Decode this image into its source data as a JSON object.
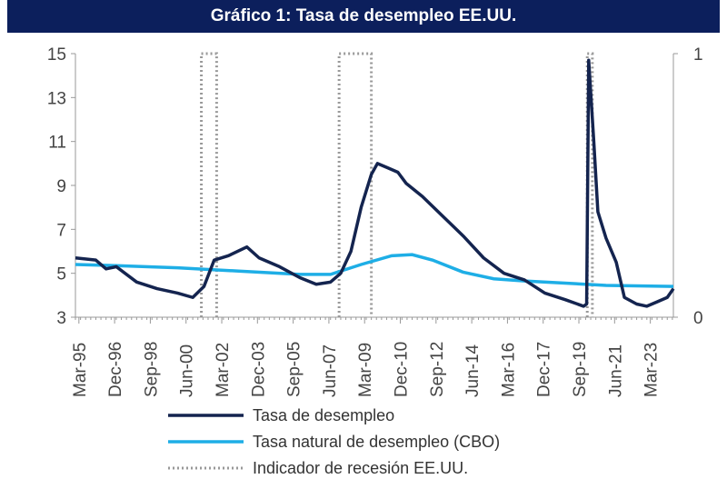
{
  "title": "Gráfico 1: Tasa de desempleo EE.UU.",
  "chart_data": {
    "type": "line",
    "title": "Gráfico 1: Tasa de desempleo EE.UU.",
    "xlim": [
      1995.0,
      2024.3
    ],
    "ylim": [
      3,
      15
    ],
    "y2lim": [
      0,
      1
    ],
    "yticks": [
      3,
      5,
      7,
      9,
      11,
      13,
      15
    ],
    "y2ticks": [
      0,
      1
    ],
    "xticks": [
      {
        "label": "Mar-95",
        "x": 1995.17
      },
      {
        "label": "Dec-96",
        "x": 1996.92
      },
      {
        "label": "Sep-98",
        "x": 1998.67
      },
      {
        "label": "Jun-00",
        "x": 2000.42
      },
      {
        "label": "Mar-02",
        "x": 2002.17
      },
      {
        "label": "Dec-03",
        "x": 2003.92
      },
      {
        "label": "Sep-05",
        "x": 2005.67
      },
      {
        "label": "Jun-07",
        "x": 2007.42
      },
      {
        "label": "Mar-09",
        "x": 2009.17
      },
      {
        "label": "Dec-10",
        "x": 2010.92
      },
      {
        "label": "Sep-12",
        "x": 2012.67
      },
      {
        "label": "Jun-14",
        "x": 2014.42
      },
      {
        "label": "Mar-16",
        "x": 2016.17
      },
      {
        "label": "Dec-17",
        "x": 2017.92
      },
      {
        "label": "Sep-19",
        "x": 2019.67
      },
      {
        "label": "Jun-21",
        "x": 2021.42
      },
      {
        "label": "Mar-23",
        "x": 2023.17
      }
    ],
    "series": [
      {
        "name": "Tasa de desempleo",
        "color": "#14244f",
        "points": [
          [
            1995.0,
            5.7
          ],
          [
            1996,
            5.6
          ],
          [
            1996.5,
            5.2
          ],
          [
            1997,
            5.3
          ],
          [
            1998,
            4.6
          ],
          [
            1999,
            4.3
          ],
          [
            2000,
            4.1
          ],
          [
            2000.75,
            3.9
          ],
          [
            2001.3,
            4.4
          ],
          [
            2001.8,
            5.6
          ],
          [
            2002.5,
            5.8
          ],
          [
            2003.4,
            6.2
          ],
          [
            2004,
            5.7
          ],
          [
            2005,
            5.3
          ],
          [
            2006,
            4.8
          ],
          [
            2006.8,
            4.5
          ],
          [
            2007.5,
            4.6
          ],
          [
            2008,
            5.0
          ],
          [
            2008.5,
            6.0
          ],
          [
            2009,
            8.0
          ],
          [
            2009.5,
            9.5
          ],
          [
            2009.8,
            10.0
          ],
          [
            2010.3,
            9.8
          ],
          [
            2010.8,
            9.6
          ],
          [
            2011.2,
            9.1
          ],
          [
            2012,
            8.5
          ],
          [
            2013,
            7.6
          ],
          [
            2014,
            6.7
          ],
          [
            2015,
            5.7
          ],
          [
            2016,
            5.0
          ],
          [
            2017,
            4.7
          ],
          [
            2018,
            4.1
          ],
          [
            2019,
            3.8
          ],
          [
            2019.9,
            3.5
          ],
          [
            2020.05,
            3.6
          ],
          [
            2020.15,
            14.7
          ],
          [
            2020.4,
            11.0
          ],
          [
            2020.6,
            7.8
          ],
          [
            2021,
            6.6
          ],
          [
            2021.5,
            5.5
          ],
          [
            2021.9,
            3.9
          ],
          [
            2022.5,
            3.6
          ],
          [
            2023,
            3.5
          ],
          [
            2023.5,
            3.7
          ],
          [
            2024.0,
            3.9
          ],
          [
            2024.3,
            4.3
          ]
        ]
      },
      {
        "name": "Tasa natural de desempleo (CBO)",
        "color": "#1eaee6",
        "points": [
          [
            1995.0,
            5.4
          ],
          [
            1997,
            5.35
          ],
          [
            2000,
            5.25
          ],
          [
            2003,
            5.1
          ],
          [
            2006,
            4.95
          ],
          [
            2007.5,
            4.95
          ],
          [
            2009,
            5.4
          ],
          [
            2010.5,
            5.8
          ],
          [
            2011.5,
            5.85
          ],
          [
            2012.5,
            5.6
          ],
          [
            2014,
            5.05
          ],
          [
            2015.5,
            4.75
          ],
          [
            2017,
            4.65
          ],
          [
            2019,
            4.55
          ],
          [
            2021,
            4.45
          ],
          [
            2024.3,
            4.4
          ]
        ]
      },
      {
        "name": "Indicador de recesión EE.UU.",
        "color": "#999999",
        "dotted": true,
        "ranges": [
          [
            2001.17,
            2001.92
          ],
          [
            2007.92,
            2009.5
          ],
          [
            2020.08,
            2020.33
          ]
        ]
      }
    ]
  }
}
